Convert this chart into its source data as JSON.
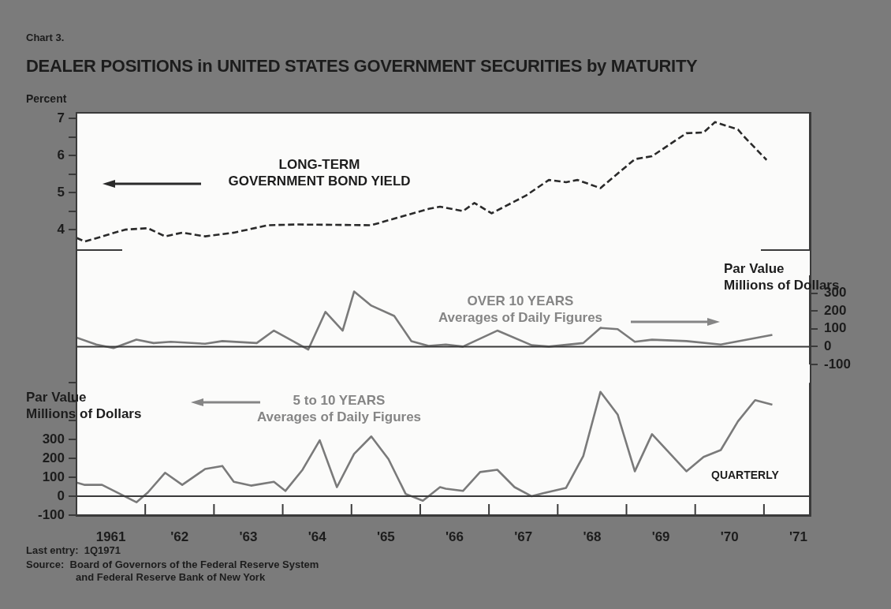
{
  "chart_data": [
    {
      "type": "line",
      "title": "DEALER POSITIONS in UNITED STATES GOVERNMENT SECURITIES by MATURITY",
      "ylabel": "Percent",
      "annotations": [
        "Chart 3.",
        "LONG-TERM\nGOVERNMENT BOND YIELD"
      ],
      "x": [
        "1961-01-01",
        "1961-02-15",
        "1961-09-15",
        "1962-01-15",
        "1962-04-15",
        "1962-07-15",
        "1962-11-15",
        "1963-04-15",
        "1963-10-15",
        "1964-03-15",
        "1965-04-15",
        "1965-09-15",
        "1966-02-15",
        "1966-04-15",
        "1966-08-15",
        "1966-10-15",
        "1967-01-15",
        "1967-07-15",
        "1967-11-15",
        "1968-02-15",
        "1968-04-15",
        "1968-08-15",
        "1969-02-15",
        "1969-05-15",
        "1969-11-15",
        "1970-02-15",
        "1970-04-15",
        "1970-08-15",
        "1970-09-15",
        "1971-01-15"
      ],
      "series": [
        {
          "color": "#2a2a2a",
          "values": [
            3.78,
            3.68,
            4.0,
            4.04,
            3.82,
            3.92,
            3.82,
            3.92,
            4.12,
            4.14,
            4.12,
            4.34,
            4.56,
            4.62,
            4.5,
            4.72,
            4.44,
            4.92,
            5.34,
            5.28,
            5.34,
            5.12,
            5.9,
            5.98,
            6.6,
            6.62,
            6.9,
            6.7,
            6.52,
            5.88
          ]
        }
      ],
      "xlim": [
        "1961",
        "1971-09"
      ],
      "ylim": [
        3.45,
        7.15
      ],
      "yticks": [
        4,
        {
          "value": 4.5,
          "label": null
        },
        5,
        {
          "value": 5.5,
          "label": null
        },
        6,
        {
          "value": 6.5,
          "label": null
        },
        7
      ],
      "tick_labels": "y",
      "marker": "none",
      "line_style": "dashed"
    },
    {
      "type": "line",
      "y2label": "Par Value\nMillions of Dollars",
      "annotations": [
        "OVER 10 YEARS\nAverages of Daily Figures"
      ],
      "x": [
        "1961-01-01",
        "1961-04-15",
        "1961-07-15",
        "1961-11-15",
        "1962-02-15",
        "1962-05-15",
        "1962-11-15",
        "1963-02-15",
        "1963-08-15",
        "1963-11-15",
        "1964-05-15",
        "1964-08-15",
        "1964-11-15",
        "1965-01-15",
        "1965-04-15",
        "1965-08-15",
        "1965-11-15",
        "1966-02-15",
        "1966-05-15",
        "1966-08-15",
        "1967-02-15",
        "1967-08-15",
        "1967-11-15",
        "1968-05-15",
        "1968-08-15",
        "1968-11-15",
        "1969-02-15",
        "1969-05-15",
        "1969-11-15",
        "1970-05-15",
        "1971-02-15"
      ],
      "series": [
        {
          "color": "#7a7a7a",
          "axis": "y2",
          "values": [
            51,
            12,
            -8,
            39,
            20,
            27,
            16,
            31,
            20,
            90,
            -16,
            195,
            90,
            309,
            230,
            172,
            31,
            4,
            12,
            0,
            90,
            8,
            0,
            20,
            105,
            98,
            27,
            39,
            31,
            12,
            66
          ]
        }
      ],
      "xlim": [
        "1961",
        "1971-09"
      ],
      "y2lim": [
        -100,
        400
      ],
      "y2ticks": [
        -100,
        0,
        100,
        200,
        300
      ],
      "ref_lines": [
        {
          "axis": "y2",
          "value": 0,
          "color": "#3a3a3a"
        }
      ],
      "tick_labels": "y2",
      "marker": "none"
    },
    {
      "type": "line",
      "ylabel": "Par Value\nMillions of Dollars",
      "annotations": [
        "5 to 10 YEARS\nAverages of Daily Figures",
        "QUARTERLY",
        "Last entry:  1Q1971",
        "Source:  Board of Governors of the Federal Reserve System\nand Federal Reserve Bank of New York"
      ],
      "x": [
        "1961-01-01",
        "1961-02-15",
        "1961-05-15",
        "1961-11-15",
        "1962-01-15",
        "1962-04-15",
        "1962-07-15",
        "1962-11-15",
        "1963-02-15",
        "1963-04-15",
        "1963-07-15",
        "1963-11-15",
        "1964-01-15",
        "1964-04-15",
        "1964-07-15",
        "1964-10-15",
        "1965-01-15",
        "1965-04-15",
        "1965-07-15",
        "1965-10-15",
        "1966-01-15",
        "1966-04-15",
        "1966-05-15",
        "1966-08-15",
        "1966-11-15",
        "1967-02-15",
        "1967-05-15",
        "1967-08-15",
        "1967-10-15",
        "1968-02-15",
        "1968-05-15",
        "1968-08-15",
        "1968-11-15",
        "1969-02-15",
        "1969-05-15",
        "1969-11-15",
        "1970-02-15",
        "1970-05-15",
        "1970-08-15",
        "1970-11-15",
        "1971-02-15"
      ],
      "series": [
        {
          "color": "#7a7a7a",
          "values": [
            72,
            60,
            60,
            -32,
            20,
            124,
            60,
            144,
            160,
            76,
            56,
            76,
            28,
            140,
            296,
            48,
            224,
            316,
            196,
            12,
            -24,
            48,
            40,
            28,
            128,
            140,
            48,
            0,
            16,
            44,
            212,
            552,
            432,
            132,
            328,
            132,
            208,
            244,
            396,
            508,
            484
          ]
        }
      ],
      "xlim": [
        "1961",
        "1971-09"
      ],
      "xticks": [
        {
          "value": "1961-07",
          "label": "1961"
        },
        {
          "value": "1962",
          "label": null
        },
        {
          "value": "1962-07",
          "label": "'62"
        },
        {
          "value": "1963",
          "label": null
        },
        {
          "value": "1963-07",
          "label": "'63"
        },
        {
          "value": "1964",
          "label": null
        },
        {
          "value": "1964-07",
          "label": "'64"
        },
        {
          "value": "1965",
          "label": null
        },
        {
          "value": "1965-07",
          "label": "'65"
        },
        {
          "value": "1966",
          "label": null
        },
        {
          "value": "1966-07",
          "label": "'66"
        },
        {
          "value": "1967",
          "label": null
        },
        {
          "value": "1967-07",
          "label": "'67"
        },
        {
          "value": "1968",
          "label": null
        },
        {
          "value": "1968-07",
          "label": "'68"
        },
        {
          "value": "1969",
          "label": null
        },
        {
          "value": "1969-07",
          "label": "'69"
        },
        {
          "value": "1970",
          "label": null
        },
        {
          "value": "1970-07",
          "label": "'70"
        },
        {
          "value": "1971",
          "label": null
        },
        {
          "value": "1971-07",
          "label": "'71"
        }
      ],
      "ylim": [
        -100,
        600
      ],
      "yticks": [
        -100,
        0,
        100,
        200,
        300,
        {
          "value": 400,
          "label": null
        },
        {
          "value": 500,
          "label": null
        },
        {
          "value": 600,
          "label": null
        }
      ],
      "ref_lines": [
        {
          "axis": "y",
          "value": 0,
          "color": "#3a3a3a"
        }
      ],
      "marker": "none"
    }
  ]
}
